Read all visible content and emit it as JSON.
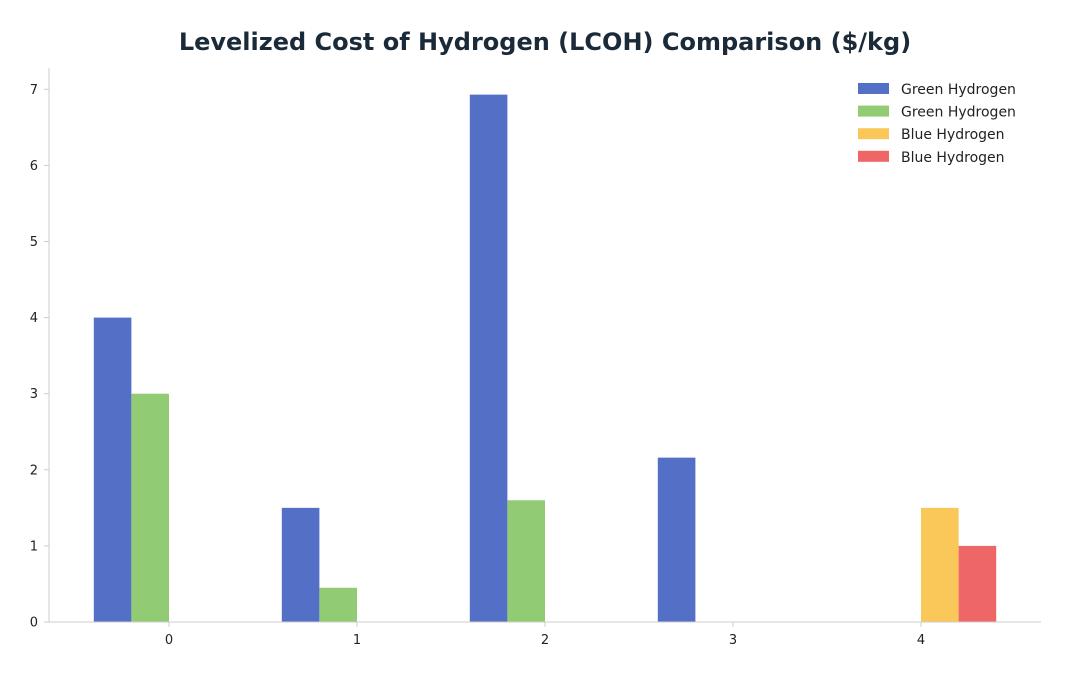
{
  "chart_data": {
    "type": "bar",
    "title": "Levelized Cost of Hydrogen (LCOH) Comparison ($/kg)",
    "xlabel": "",
    "ylabel": "",
    "categories": [
      "0",
      "1",
      "2",
      "3",
      "4"
    ],
    "ylim": [
      0,
      7.28
    ],
    "yticks": [
      "0",
      "1",
      "2",
      "3",
      "4",
      "5",
      "6",
      "7"
    ],
    "grid": false,
    "legend_position": "top-right",
    "series": [
      {
        "name": "Green Hydrogen",
        "color": "#5470c6",
        "values": [
          4.0,
          1.5,
          6.93,
          2.16,
          0
        ]
      },
      {
        "name": "Green Hydrogen",
        "color": "#91cc75",
        "values": [
          3.0,
          0.45,
          1.6,
          0,
          0
        ]
      },
      {
        "name": "Blue Hydrogen",
        "color": "#fac858",
        "values": [
          0,
          0,
          0,
          0,
          1.5
        ]
      },
      {
        "name": "Blue Hydrogen",
        "color": "#ee6666",
        "values": [
          0,
          0,
          0,
          0,
          1.0
        ]
      }
    ]
  }
}
